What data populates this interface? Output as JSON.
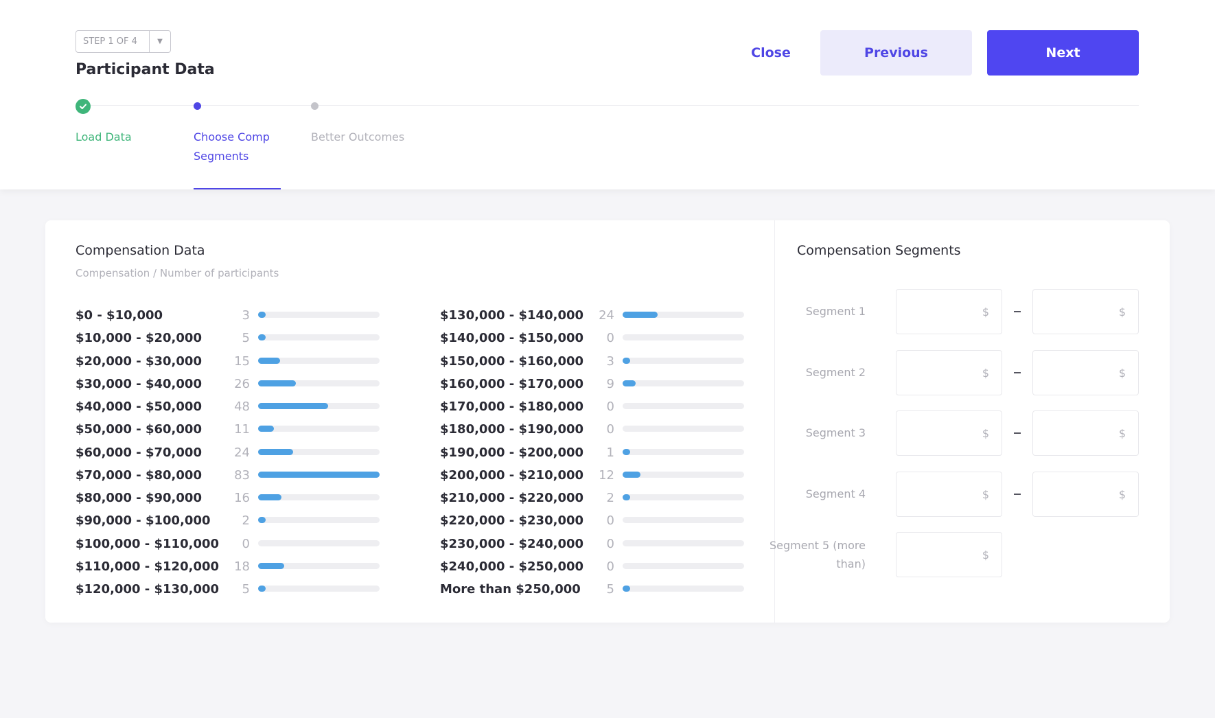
{
  "header": {
    "step_indicator": "STEP 1 OF 4",
    "title": "Participant Data",
    "close_label": "Close",
    "previous_label": "Previous",
    "next_label": "Next"
  },
  "stepper": {
    "steps": [
      {
        "label": "Load Data",
        "status": "complete"
      },
      {
        "label": "Choose Comp Segments",
        "status": "active"
      },
      {
        "label": "Better Outcomes",
        "status": "pending"
      }
    ]
  },
  "colors": {
    "accent": "#4f46f1",
    "success": "#3fb57a",
    "bar": "#4ea1e3"
  },
  "compensation": {
    "title": "Compensation Data",
    "subtitle": "Compensation / Number of participants",
    "max_count": 83,
    "ranges": [
      {
        "range": "$0 - $10,000",
        "count": 3
      },
      {
        "range": "$10,000 - $20,000",
        "count": 5
      },
      {
        "range": "$20,000 - $30,000",
        "count": 15
      },
      {
        "range": "$30,000 - $40,000",
        "count": 26
      },
      {
        "range": "$40,000 - $50,000",
        "count": 48
      },
      {
        "range": "$50,000 - $60,000",
        "count": 11
      },
      {
        "range": "$60,000 - $70,000",
        "count": 24
      },
      {
        "range": "$70,000 - $80,000",
        "count": 83
      },
      {
        "range": "$80,000 - $90,000",
        "count": 16
      },
      {
        "range": "$90,000 - $100,000",
        "count": 2
      },
      {
        "range": "$100,000 - $110,000",
        "count": 0
      },
      {
        "range": "$110,000 - $120,000",
        "count": 18
      },
      {
        "range": "$120,000 - $130,000",
        "count": 5
      },
      {
        "range": "$130,000 - $140,000",
        "count": 24
      },
      {
        "range": "$140,000 - $150,000",
        "count": 0
      },
      {
        "range": "$150,000 - $160,000",
        "count": 3
      },
      {
        "range": "$160,000 - $170,000",
        "count": 9
      },
      {
        "range": "$170,000 - $180,000",
        "count": 0
      },
      {
        "range": "$180,000 - $190,000",
        "count": 0
      },
      {
        "range": "$190,000 - $200,000",
        "count": 1
      },
      {
        "range": "$200,000 - $210,000",
        "count": 12
      },
      {
        "range": "$210,000 - $220,000",
        "count": 2
      },
      {
        "range": "$220,000 - $230,000",
        "count": 0
      },
      {
        "range": "$230,000 - $240,000",
        "count": 0
      },
      {
        "range": "$240,000 - $250,000",
        "count": 0
      },
      {
        "range": "More than $250,000",
        "count": 5
      }
    ]
  },
  "segments": {
    "title": "Compensation Segments",
    "currency_symbol": "$",
    "items": [
      {
        "label": "Segment 1",
        "has_upper": true
      },
      {
        "label": "Segment 2",
        "has_upper": true
      },
      {
        "label": "Segment 3",
        "has_upper": true
      },
      {
        "label": "Segment 4",
        "has_upper": true
      },
      {
        "label": "Segment 5 (more than)",
        "has_upper": false
      }
    ]
  }
}
